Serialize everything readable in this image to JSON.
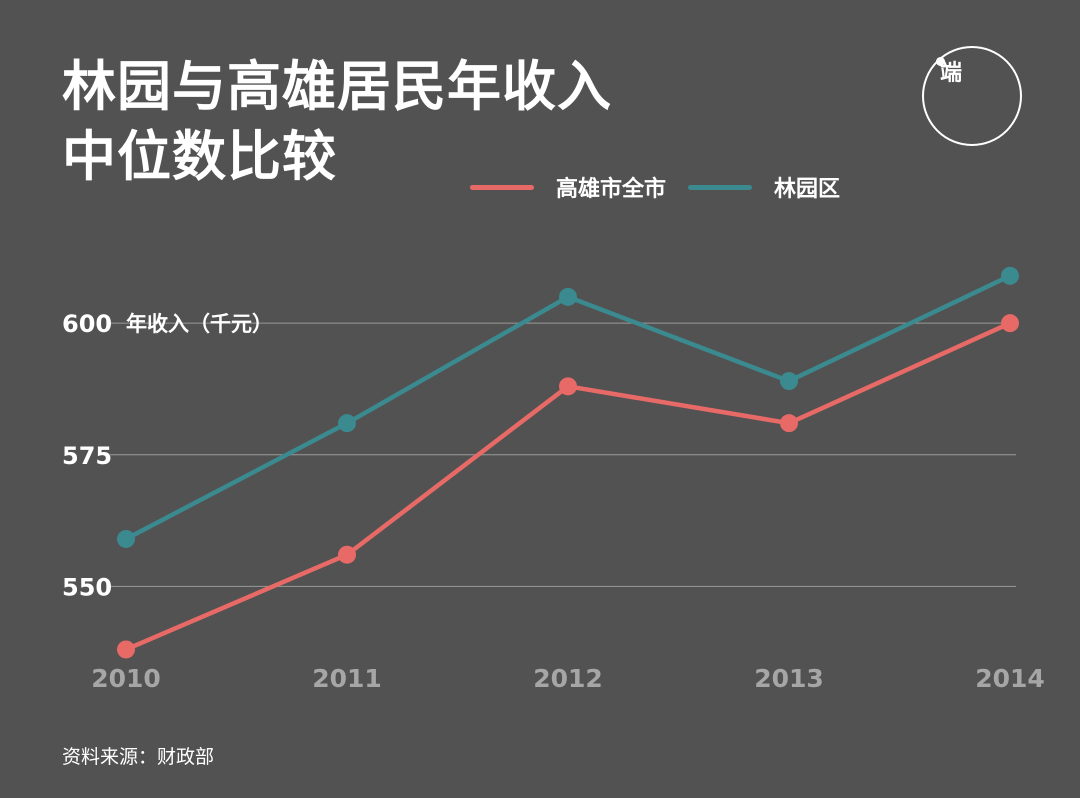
{
  "title_lines": [
    "林园与高雄居民年收入",
    "中位数比较"
  ],
  "logo": {
    "glyph": "端"
  },
  "source": "资料来源：财政部",
  "colors": {
    "background": "#525252",
    "grid": "#9a9a9a",
    "tick_y": "#ffffff",
    "tick_x": "#a6a6a6"
  },
  "chart_data": {
    "type": "line",
    "title": "林园与高雄居民年收入中位数比较",
    "ylabel": "年收入（千元）",
    "x": [
      "2010",
      "2011",
      "2012",
      "2013",
      "2014"
    ],
    "ylim": [
      536,
      614
    ],
    "yticks": [
      550,
      575,
      600
    ],
    "grid": true,
    "legend_position": "top-right",
    "series": [
      {
        "name": "高雄市全市",
        "color": "#e86a67",
        "values": [
          538,
          556,
          588,
          581,
          600
        ]
      },
      {
        "name": "林园区",
        "color": "#3a8a8f",
        "values": [
          559,
          581,
          605,
          589,
          609
        ]
      }
    ]
  }
}
